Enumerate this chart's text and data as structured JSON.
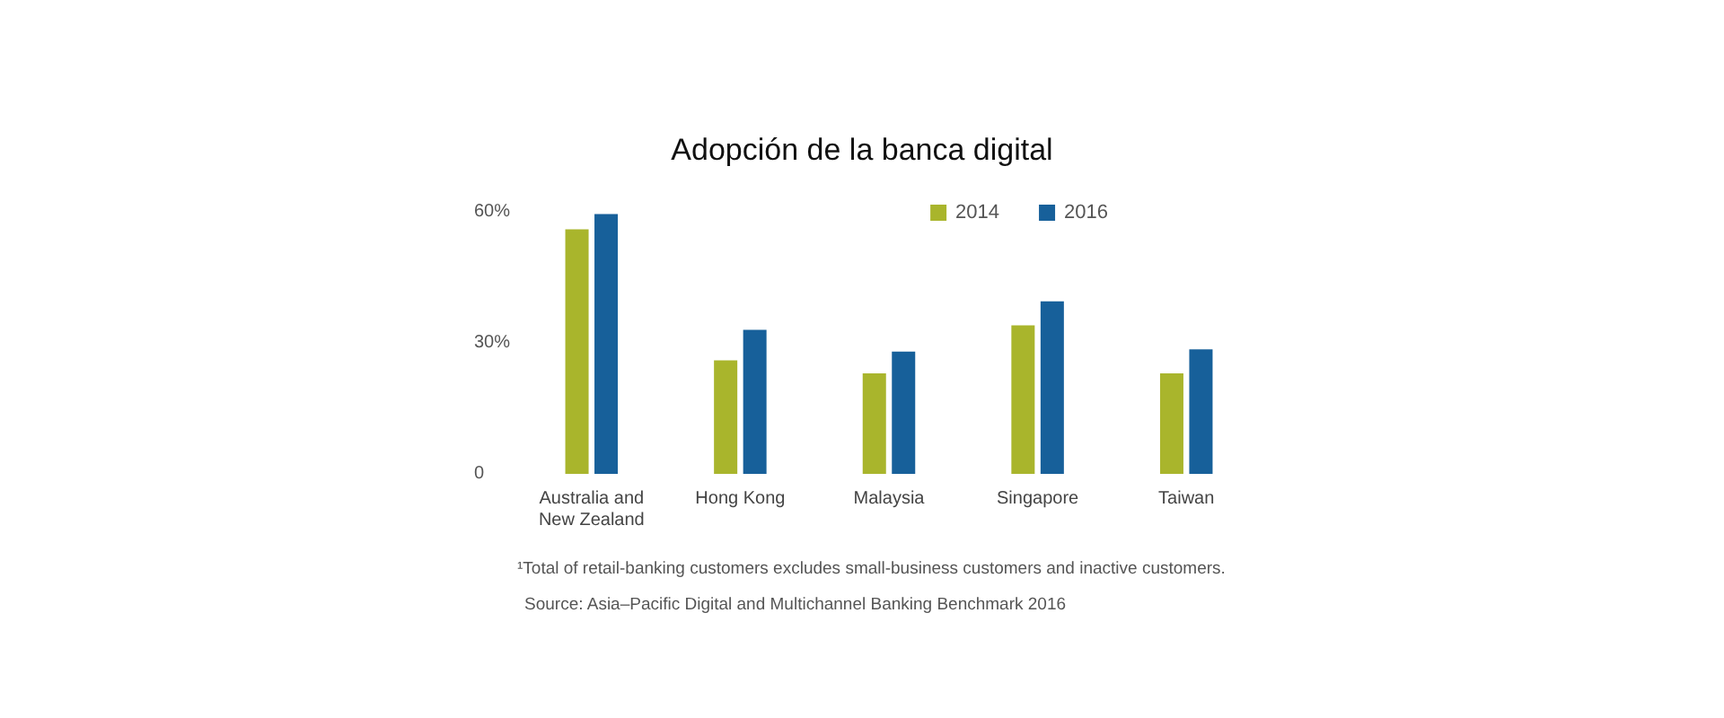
{
  "chart_data": {
    "type": "bar",
    "title": "Adopción de la banca digital",
    "categories": [
      "Australia and\nNew Zealand",
      "Hong Kong",
      "Malaysia",
      "Singapore",
      "Taiwan"
    ],
    "series": [
      {
        "name": "2014",
        "color": "#a9b52c",
        "values": [
          56,
          26,
          23,
          34,
          23
        ]
      },
      {
        "name": "2016",
        "color": "#17609a",
        "values": [
          59.5,
          33,
          28,
          39.5,
          28.5
        ]
      }
    ],
    "ylim": [
      0,
      60
    ],
    "yticks": [
      0,
      {
        "value": 30,
        "label": "30%"
      },
      {
        "value": 60,
        "label": "60%"
      }
    ],
    "grid": false,
    "legend": "top right",
    "annotations": [
      "¹Total of retail-banking customers excludes small-business customers and inactive customers.",
      "Source: Asia–Pacific Digital and Multichannel Banking Benchmark 2016"
    ]
  }
}
